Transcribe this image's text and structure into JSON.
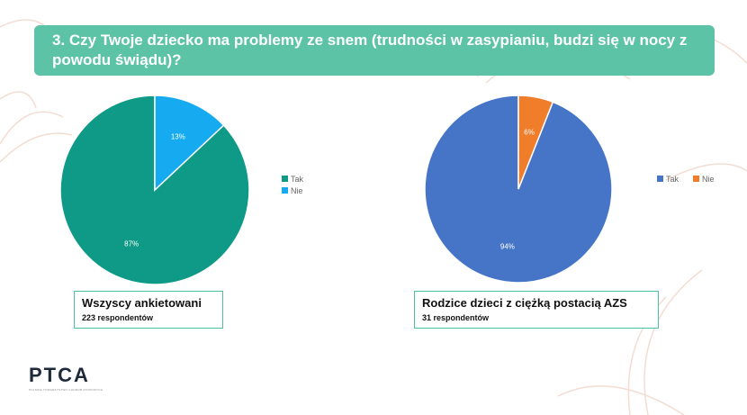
{
  "title": "3. Czy Twoje dziecko ma problemy ze snem (trudności w zasypianiu, budzi się w nocy z powodu świądu)?",
  "logo": {
    "text": "PTCA",
    "subtitle": "POLSKIE TOWARZYSTWO CHOROB ATOPOWYCH"
  },
  "chart_data": [
    {
      "type": "pie",
      "title": "Wszyscy ankietowani",
      "subtitle": "223 respondentów",
      "slices": [
        {
          "label": "Tak",
          "value": 87,
          "data_label": "87%",
          "color": "#0e9a86"
        },
        {
          "label": "Nie",
          "value": 13,
          "data_label": "13%",
          "color": "#16aaf0"
        }
      ],
      "legend_position": "right"
    },
    {
      "type": "pie",
      "title": "Rodzice dzieci z ciężką postacią AZS",
      "subtitle": "31 respondentów",
      "slices": [
        {
          "label": "Tak",
          "value": 94,
          "data_label": "94%",
          "color": "#4675c8"
        },
        {
          "label": "Nie",
          "value": 6,
          "data_label": "6%",
          "color": "#ef7d2a"
        }
      ],
      "legend_position": "right"
    }
  ]
}
